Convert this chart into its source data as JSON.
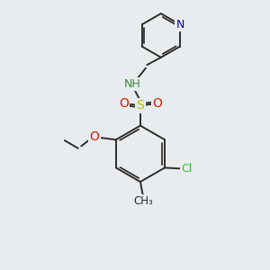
{
  "background_color": "#e8ecee",
  "bond_color": "#2d2d2d",
  "bond_width": 1.4,
  "atom_colors": {
    "N_nh": "#3a8a3a",
    "O": "#cc2200",
    "S": "#bbbb00",
    "Cl": "#33bb33",
    "N_py": "#0000cc",
    "C": "#2d2d2d"
  },
  "figsize": [
    3.0,
    3.0
  ],
  "dpi": 100
}
